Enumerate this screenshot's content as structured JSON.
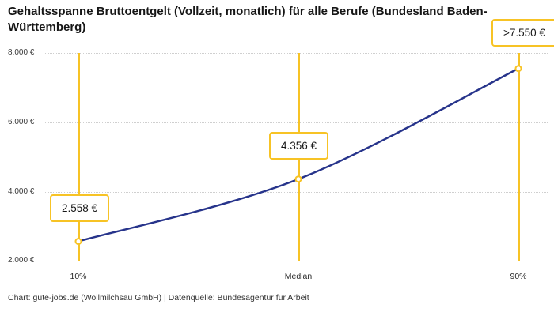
{
  "title": "Gehaltsspanne Bruttoentgelt (Vollzeit, monatlich) für alle Berufe (Bundesland Baden-Württemberg)",
  "footer": "Chart: gute-jobs.de (Wollmilchsau GmbH) | Datenquelle: Bundesagentur für Arbeit",
  "colors": {
    "accent_yellow": "#f7c325",
    "line_blue": "#27348b",
    "grid_gray": "#cfcfcf",
    "text": "#161616"
  },
  "chart_data": {
    "type": "line",
    "title": "Gehaltsspanne Bruttoentgelt (Vollzeit, monatlich) für alle Berufe (Bundesland Baden-Württemberg)",
    "categories": [
      "10%",
      "Median",
      "90%"
    ],
    "values": [
      2558,
      4356,
      7550
    ],
    "points": [
      {
        "label": "10%",
        "value": 2558,
        "display": "2.558 €"
      },
      {
        "label": "Median",
        "value": 4356,
        "display": "4.356 €"
      },
      {
        "label": "90%",
        "value": 7550,
        "display": ">7.550 €"
      }
    ],
    "yticks": [
      {
        "value": 2000,
        "label": "2.000 €"
      },
      {
        "value": 4000,
        "label": "4.000 €"
      },
      {
        "value": 6000,
        "label": "6.000 €"
      },
      {
        "value": 8000,
        "label": "8.000 €"
      }
    ],
    "ylim": [
      2000,
      8000
    ],
    "xlabel": "",
    "ylabel": "",
    "grid": "horizontal-dotted",
    "legend": "none"
  }
}
